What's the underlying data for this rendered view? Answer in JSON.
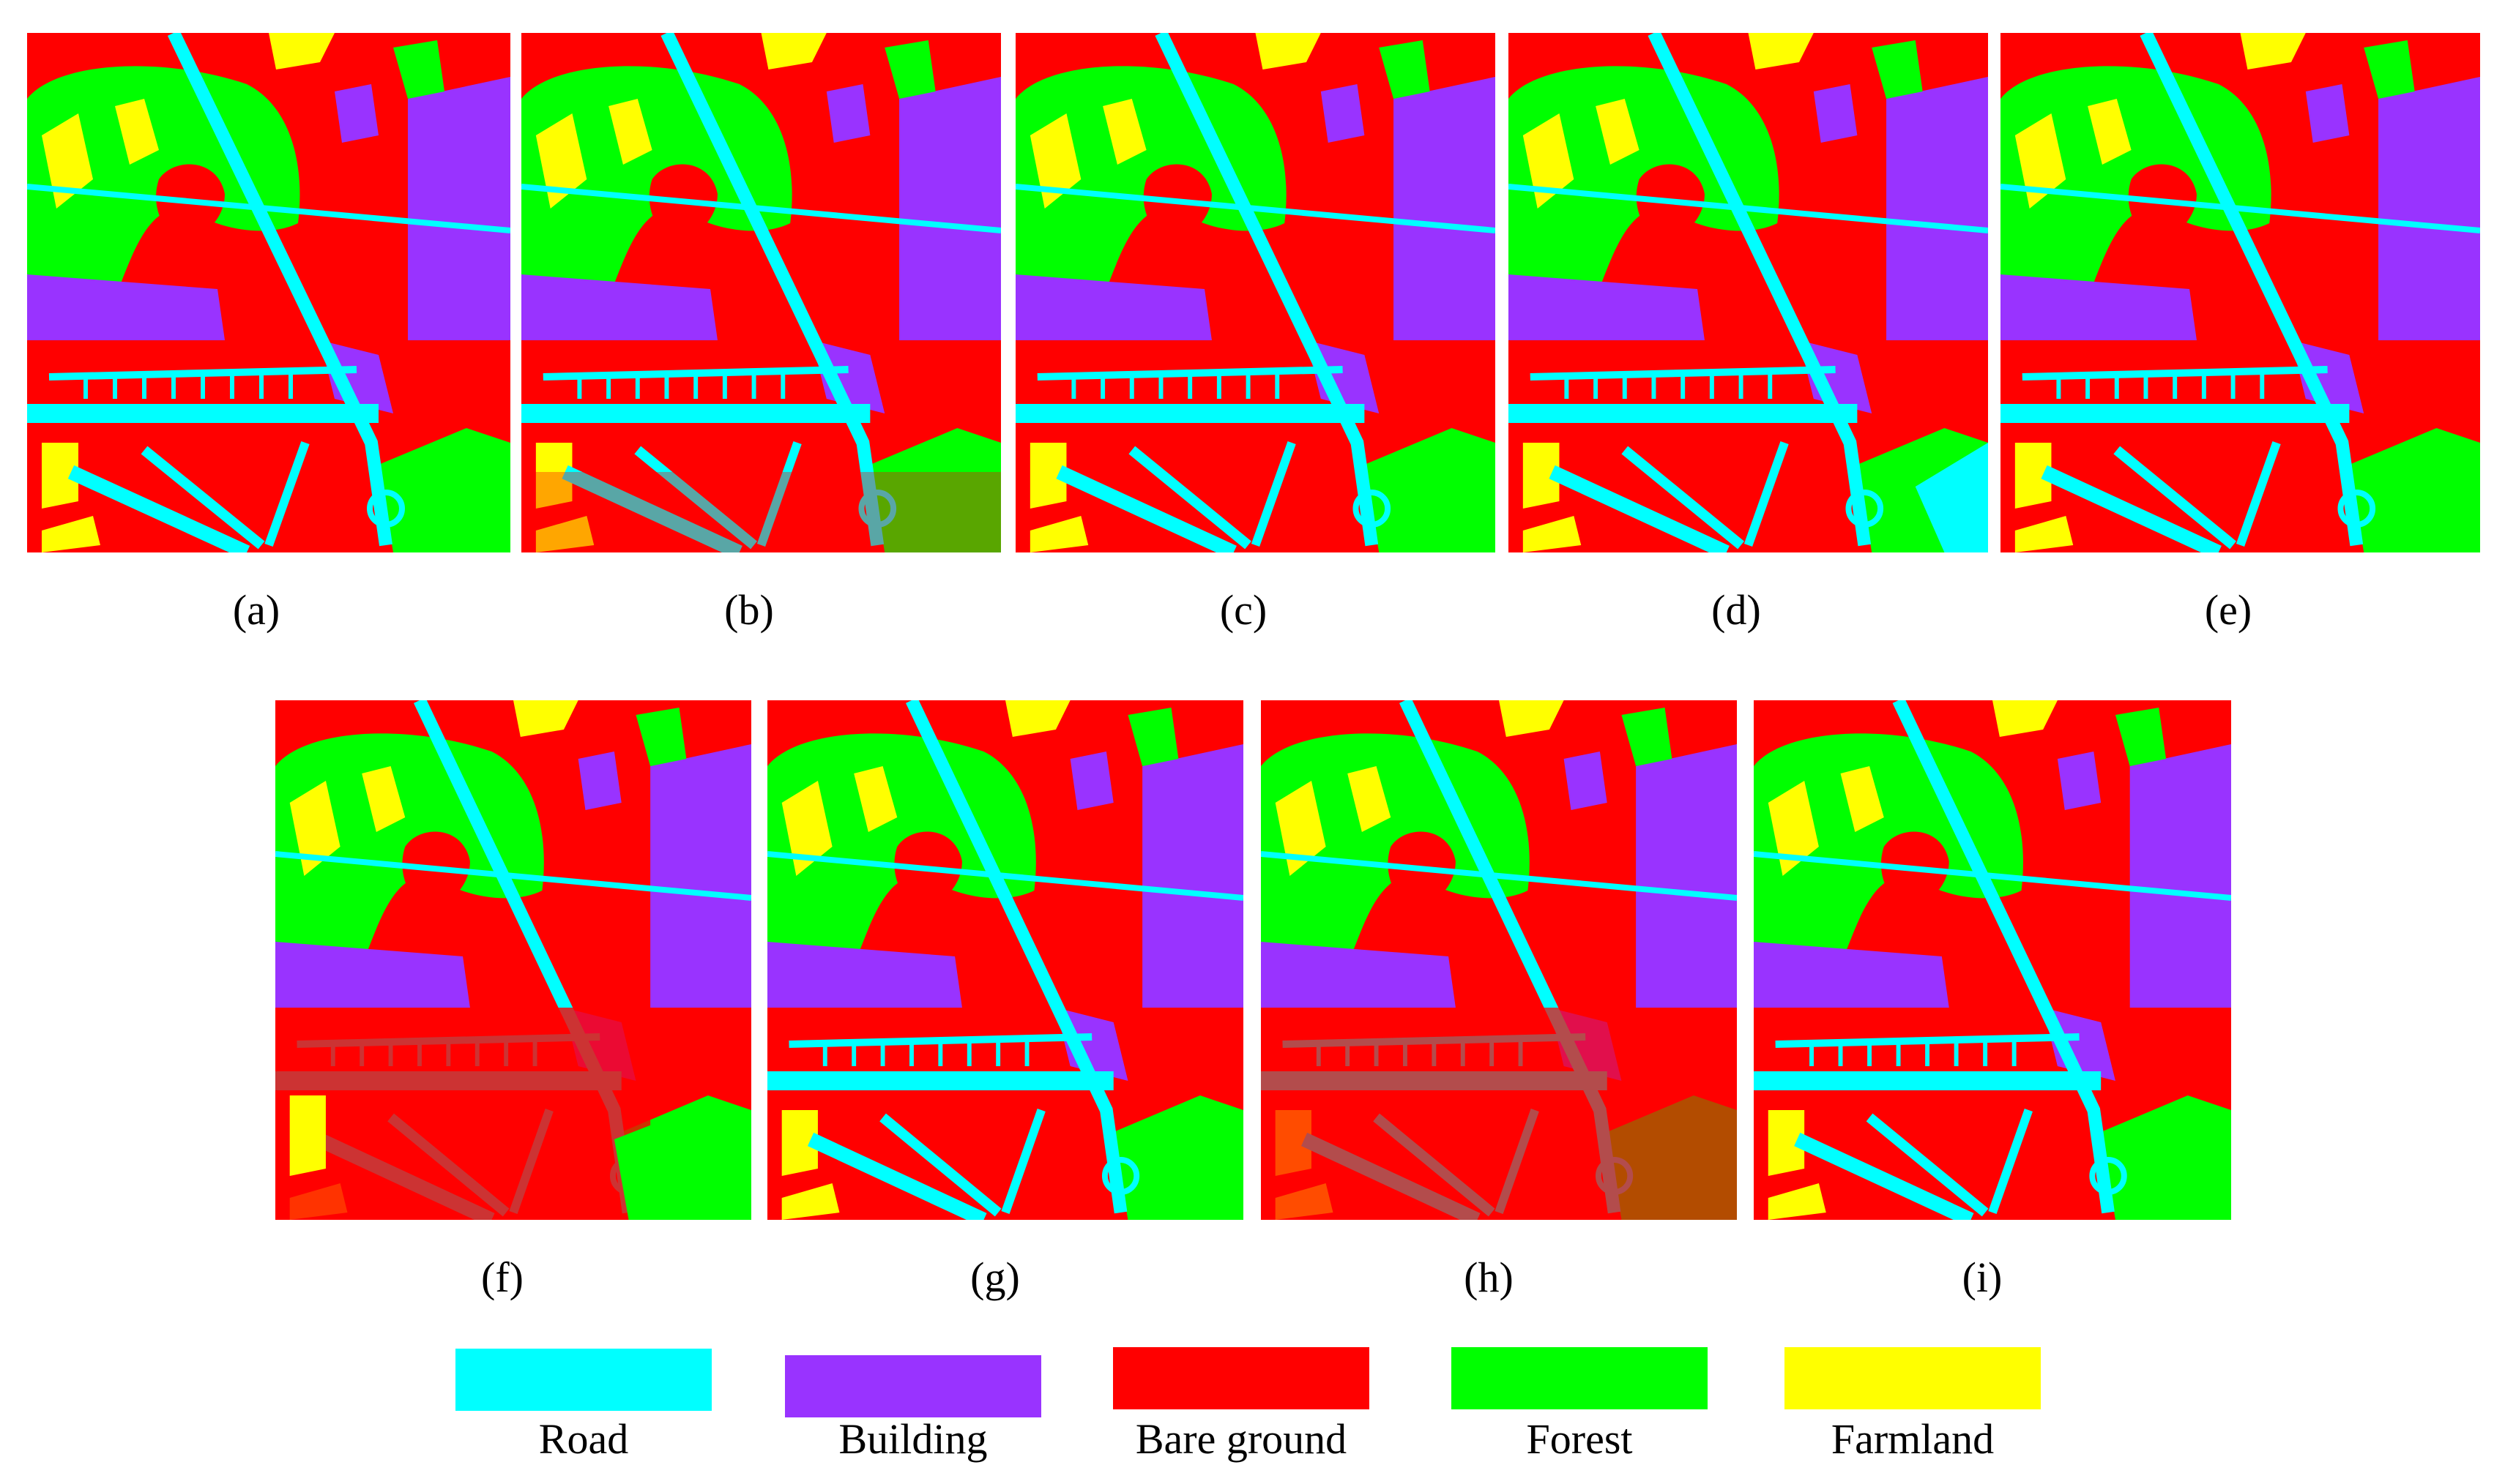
{
  "colors": {
    "road": "#00ffff",
    "building": "#9933ff",
    "bare_ground": "#ff0000",
    "forest": "#00ff00",
    "farmland": "#ffff00"
  },
  "panels": [
    {
      "id": "a",
      "label": "(a)"
    },
    {
      "id": "b",
      "label": "(b)"
    },
    {
      "id": "c",
      "label": "(c)"
    },
    {
      "id": "d",
      "label": "(d)"
    },
    {
      "id": "e",
      "label": "(e)"
    },
    {
      "id": "f",
      "label": "(f)"
    },
    {
      "id": "g",
      "label": "(g)"
    },
    {
      "id": "h",
      "label": "(h)"
    },
    {
      "id": "i",
      "label": "(i)"
    }
  ],
  "legend": [
    {
      "class": "road",
      "label": "Road",
      "color": "#00ffff"
    },
    {
      "class": "building",
      "label": "Building",
      "color": "#9933ff"
    },
    {
      "class": "bare_ground",
      "label": "Bare ground",
      "color": "#ff0000"
    },
    {
      "class": "forest",
      "label": "Forest",
      "color": "#00ff00"
    },
    {
      "class": "farmland",
      "label": "Farmland",
      "color": "#ffff00"
    }
  ]
}
